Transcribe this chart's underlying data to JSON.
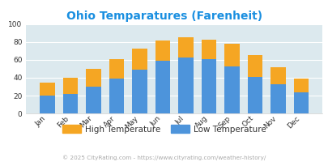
{
  "title": "Ohio Temparatures (Farenheit)",
  "months": [
    "Jan",
    "Feb",
    "Mar",
    "Apr",
    "May",
    "Jun",
    "Jul",
    "Aug",
    "Sep",
    "Oct",
    "Nov",
    "Dec"
  ],
  "low_temps": [
    20,
    22,
    30,
    39,
    49,
    59,
    63,
    61,
    53,
    41,
    33,
    24
  ],
  "high_temps": [
    35,
    40,
    50,
    61,
    73,
    82,
    85,
    83,
    78,
    65,
    52,
    39
  ],
  "color_low": "#4d94db",
  "color_high": "#f5a623",
  "ylim": [
    0,
    100
  ],
  "yticks": [
    0,
    20,
    40,
    60,
    80,
    100
  ],
  "title_color": "#1a8fe0",
  "title_fontsize": 10,
  "bg_color": "#dce9ee",
  "footer_text": "© 2025 CityRating.com - https://www.cityrating.com/weather-history/",
  "footer_color": "#aaaaaa",
  "legend_label_high": "High Temperature",
  "legend_label_low": "Low Temperature",
  "legend_text_color": "#333333"
}
